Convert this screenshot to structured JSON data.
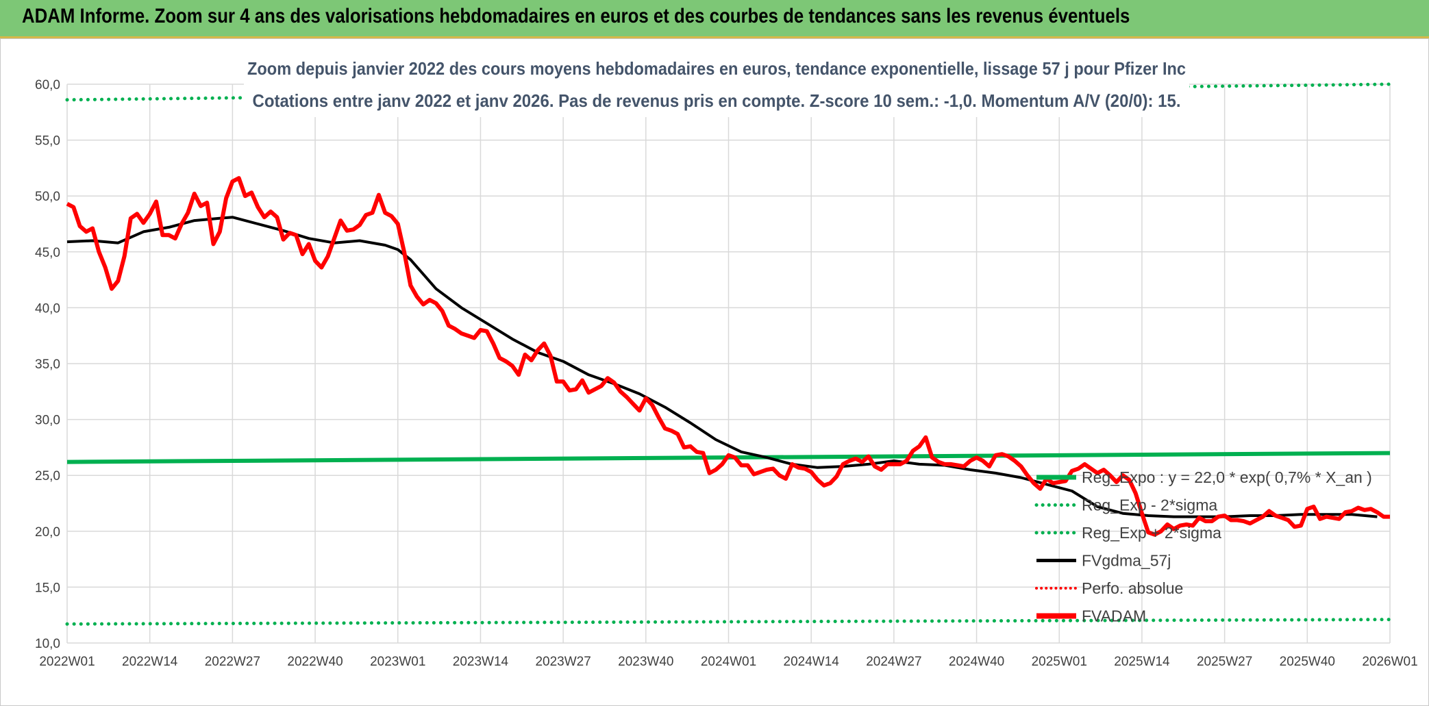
{
  "banner": {
    "title": "ADAM Informe. Zoom sur 4 ans des valorisations hebdomadaires en euros et des courbes de tendances sans les revenus éventuels"
  },
  "colors": {
    "banner_bg": "#7dc776",
    "reg_expo": "#00b050",
    "fvgdma": "#000000",
    "fvadam": "#ff0000",
    "perfo": "#ff0000",
    "grid": "#d9d9d9",
    "title_text": "#44546a"
  },
  "chart_data": {
    "type": "line",
    "title": "Zoom depuis janvier 2022 des cours moyens hebdomadaires en euros, tendance exponentielle, lissage 57 j pour Pfizer Inc",
    "subtitle": "Cotations entre janv 2022 et janv 2026. Pas de revenus pris en compte. Z-score 10 sem.: -1,0. Momentum A/V (20/0): 15.",
    "ylim": [
      10,
      60
    ],
    "ytick_labels": [
      "10,0",
      "15,0",
      "20,0",
      "25,0",
      "30,0",
      "35,0",
      "40,0",
      "45,0",
      "50,0",
      "55,0",
      "60,0"
    ],
    "x_ticks": [
      "2022W01",
      "2022W14",
      "2022W27",
      "2022W40",
      "2023W01",
      "2023W14",
      "2023W27",
      "2023W40",
      "2024W01",
      "2024W14",
      "2024W27",
      "2024W40",
      "2025W01",
      "2025W14",
      "2025W27",
      "2025W40",
      "2026W01"
    ],
    "x_range_weeks": [
      0,
      208
    ],
    "grid": true,
    "legend_position": "bottom-right",
    "series": [
      {
        "name": "Reg_Expo : y = 22,0 * exp( 0,7% *  X_an )",
        "style": "solid",
        "start": 26.2,
        "end": 27.0
      },
      {
        "name": "Reg_Exp - 2*sigma",
        "style": "dotted",
        "start": 11.7,
        "end": 12.1
      },
      {
        "name": "Reg_Exp + 2*sigma",
        "style": "dotted",
        "start": 58.6,
        "end": 60.0
      },
      {
        "name": "FVgdma_57j",
        "style": "solid",
        "points": [
          [
            0,
            45.9
          ],
          [
            4,
            46.0
          ],
          [
            8,
            45.8
          ],
          [
            12,
            46.8
          ],
          [
            16,
            47.2
          ],
          [
            20,
            47.8
          ],
          [
            24,
            48.0
          ],
          [
            26,
            48.1
          ],
          [
            30,
            47.5
          ],
          [
            34,
            46.9
          ],
          [
            38,
            46.2
          ],
          [
            42,
            45.8
          ],
          [
            46,
            46.0
          ],
          [
            50,
            45.6
          ],
          [
            52,
            45.2
          ],
          [
            54,
            44.3
          ],
          [
            56,
            43.0
          ],
          [
            58,
            41.7
          ],
          [
            62,
            40.0
          ],
          [
            66,
            38.6
          ],
          [
            70,
            37.2
          ],
          [
            74,
            36.0
          ],
          [
            78,
            35.2
          ],
          [
            82,
            34.0
          ],
          [
            86,
            33.2
          ],
          [
            90,
            32.3
          ],
          [
            94,
            31.1
          ],
          [
            98,
            29.7
          ],
          [
            102,
            28.2
          ],
          [
            106,
            27.1
          ],
          [
            110,
            26.6
          ],
          [
            114,
            26.0
          ],
          [
            118,
            25.7
          ],
          [
            122,
            25.8
          ],
          [
            126,
            26.0
          ],
          [
            130,
            26.3
          ],
          [
            134,
            26.0
          ],
          [
            138,
            25.9
          ],
          [
            142,
            25.5
          ],
          [
            146,
            25.2
          ],
          [
            150,
            24.8
          ],
          [
            154,
            24.2
          ],
          [
            158,
            23.6
          ],
          [
            162,
            22.2
          ],
          [
            166,
            21.6
          ],
          [
            170,
            21.4
          ],
          [
            174,
            21.3
          ],
          [
            178,
            21.3
          ],
          [
            182,
            21.3
          ],
          [
            186,
            21.4
          ],
          [
            190,
            21.4
          ],
          [
            194,
            21.5
          ],
          [
            198,
            21.5
          ],
          [
            202,
            21.5
          ],
          [
            206,
            21.3
          ]
        ]
      },
      {
        "name": "Perfo. absolue",
        "style": "dotted",
        "points": []
      },
      {
        "name": "FVADAM",
        "style": "solid-thick",
        "points": [
          [
            0,
            49.3
          ],
          [
            1,
            49.0
          ],
          [
            2,
            47.3
          ],
          [
            3,
            46.8
          ],
          [
            4,
            47.1
          ],
          [
            5,
            45.0
          ],
          [
            6,
            43.6
          ],
          [
            7,
            41.7
          ],
          [
            8,
            42.4
          ],
          [
            9,
            44.6
          ],
          [
            10,
            48.0
          ],
          [
            11,
            48.4
          ],
          [
            12,
            47.6
          ],
          [
            13,
            48.4
          ],
          [
            14,
            49.5
          ],
          [
            15,
            46.5
          ],
          [
            16,
            46.5
          ],
          [
            17,
            46.2
          ],
          [
            18,
            47.5
          ],
          [
            19,
            48.5
          ],
          [
            20,
            50.2
          ],
          [
            21,
            49.1
          ],
          [
            22,
            49.4
          ],
          [
            23,
            45.7
          ],
          [
            24,
            46.8
          ],
          [
            25,
            49.8
          ],
          [
            26,
            51.3
          ],
          [
            27,
            51.6
          ],
          [
            28,
            50.0
          ],
          [
            29,
            50.3
          ],
          [
            30,
            49.0
          ],
          [
            31,
            48.1
          ],
          [
            32,
            48.6
          ],
          [
            33,
            48.1
          ],
          [
            34,
            46.1
          ],
          [
            35,
            46.7
          ],
          [
            36,
            46.5
          ],
          [
            37,
            44.8
          ],
          [
            38,
            45.7
          ],
          [
            39,
            44.2
          ],
          [
            40,
            43.6
          ],
          [
            41,
            44.6
          ],
          [
            42,
            46.2
          ],
          [
            43,
            47.8
          ],
          [
            44,
            46.9
          ],
          [
            45,
            47.0
          ],
          [
            46,
            47.4
          ],
          [
            47,
            48.3
          ],
          [
            48,
            48.5
          ],
          [
            49,
            50.1
          ],
          [
            50,
            48.5
          ],
          [
            51,
            48.2
          ],
          [
            52,
            47.5
          ],
          [
            53,
            45.0
          ],
          [
            54,
            42.0
          ],
          [
            55,
            41.0
          ],
          [
            56,
            40.3
          ],
          [
            57,
            40.7
          ],
          [
            58,
            40.4
          ],
          [
            59,
            39.7
          ],
          [
            60,
            38.4
          ],
          [
            61,
            38.1
          ],
          [
            62,
            37.7
          ],
          [
            63,
            37.5
          ],
          [
            64,
            37.3
          ],
          [
            65,
            38.0
          ],
          [
            66,
            37.9
          ],
          [
            67,
            36.8
          ],
          [
            68,
            35.5
          ],
          [
            69,
            35.2
          ],
          [
            70,
            34.8
          ],
          [
            71,
            34.0
          ],
          [
            72,
            35.8
          ],
          [
            73,
            35.3
          ],
          [
            74,
            36.2
          ],
          [
            75,
            36.8
          ],
          [
            76,
            35.7
          ],
          [
            77,
            33.4
          ],
          [
            78,
            33.4
          ],
          [
            79,
            32.6
          ],
          [
            80,
            32.7
          ],
          [
            81,
            33.5
          ],
          [
            82,
            32.4
          ],
          [
            83,
            32.7
          ],
          [
            84,
            33.0
          ],
          [
            85,
            33.7
          ],
          [
            86,
            33.3
          ],
          [
            87,
            32.5
          ],
          [
            88,
            32.0
          ],
          [
            89,
            31.4
          ],
          [
            90,
            30.8
          ],
          [
            91,
            31.9
          ],
          [
            92,
            31.3
          ],
          [
            93,
            30.2
          ],
          [
            94,
            29.2
          ],
          [
            95,
            29.0
          ],
          [
            96,
            28.7
          ],
          [
            97,
            27.5
          ],
          [
            98,
            27.6
          ],
          [
            99,
            27.1
          ],
          [
            100,
            27.0
          ],
          [
            101,
            25.2
          ],
          [
            102,
            25.5
          ],
          [
            103,
            26.0
          ],
          [
            104,
            26.8
          ],
          [
            105,
            26.6
          ],
          [
            106,
            25.9
          ],
          [
            107,
            25.9
          ],
          [
            108,
            25.1
          ],
          [
            109,
            25.3
          ],
          [
            110,
            25.5
          ],
          [
            111,
            25.6
          ],
          [
            112,
            25.0
          ],
          [
            113,
            24.7
          ],
          [
            114,
            26.0
          ],
          [
            115,
            25.7
          ],
          [
            116,
            25.6
          ],
          [
            117,
            25.3
          ],
          [
            118,
            24.6
          ],
          [
            119,
            24.1
          ],
          [
            120,
            24.3
          ],
          [
            121,
            24.9
          ],
          [
            122,
            26.0
          ],
          [
            123,
            26.3
          ],
          [
            124,
            26.5
          ],
          [
            125,
            26.2
          ],
          [
            126,
            26.7
          ],
          [
            127,
            25.8
          ],
          [
            128,
            25.5
          ],
          [
            129,
            26.0
          ],
          [
            130,
            26.0
          ],
          [
            131,
            26.0
          ],
          [
            132,
            26.3
          ],
          [
            133,
            27.2
          ],
          [
            134,
            27.6
          ],
          [
            135,
            28.4
          ],
          [
            136,
            26.6
          ],
          [
            137,
            26.2
          ],
          [
            138,
            26.0
          ],
          [
            139,
            26.0
          ],
          [
            140,
            25.9
          ],
          [
            141,
            25.8
          ],
          [
            142,
            26.3
          ],
          [
            143,
            26.6
          ],
          [
            144,
            26.3
          ],
          [
            145,
            25.8
          ],
          [
            146,
            26.8
          ],
          [
            147,
            26.9
          ],
          [
            148,
            26.7
          ],
          [
            149,
            26.3
          ],
          [
            150,
            25.8
          ],
          [
            151,
            25.0
          ],
          [
            152,
            24.3
          ],
          [
            153,
            23.8
          ],
          [
            154,
            24.7
          ],
          [
            155,
            24.3
          ],
          [
            156,
            24.4
          ],
          [
            157,
            24.5
          ],
          [
            158,
            25.4
          ],
          [
            159,
            25.6
          ],
          [
            160,
            26.0
          ],
          [
            161,
            25.6
          ],
          [
            162,
            25.2
          ],
          [
            163,
            25.5
          ],
          [
            164,
            25.0
          ],
          [
            165,
            24.4
          ],
          [
            166,
            25.0
          ],
          [
            167,
            24.6
          ],
          [
            168,
            23.4
          ],
          [
            169,
            21.6
          ],
          [
            170,
            19.9
          ],
          [
            171,
            19.7
          ],
          [
            172,
            20.0
          ],
          [
            173,
            20.6
          ],
          [
            174,
            20.2
          ],
          [
            175,
            20.5
          ],
          [
            176,
            20.6
          ],
          [
            177,
            20.5
          ],
          [
            178,
            21.2
          ],
          [
            179,
            20.9
          ],
          [
            180,
            20.9
          ],
          [
            181,
            21.3
          ],
          [
            182,
            21.4
          ],
          [
            183,
            21.0
          ],
          [
            184,
            21.0
          ],
          [
            185,
            20.9
          ],
          [
            186,
            20.7
          ],
          [
            187,
            21.0
          ],
          [
            188,
            21.3
          ],
          [
            189,
            21.8
          ],
          [
            190,
            21.4
          ],
          [
            191,
            21.2
          ],
          [
            192,
            21.0
          ],
          [
            193,
            20.4
          ],
          [
            194,
            20.5
          ],
          [
            195,
            22.0
          ],
          [
            196,
            22.2
          ],
          [
            197,
            21.1
          ],
          [
            198,
            21.3
          ],
          [
            199,
            21.2
          ],
          [
            200,
            21.1
          ],
          [
            201,
            21.7
          ],
          [
            202,
            21.8
          ],
          [
            203,
            22.1
          ],
          [
            204,
            21.9
          ],
          [
            205,
            22.0
          ],
          [
            206,
            21.7
          ],
          [
            207,
            21.3
          ],
          [
            208,
            21.3
          ]
        ]
      }
    ]
  }
}
